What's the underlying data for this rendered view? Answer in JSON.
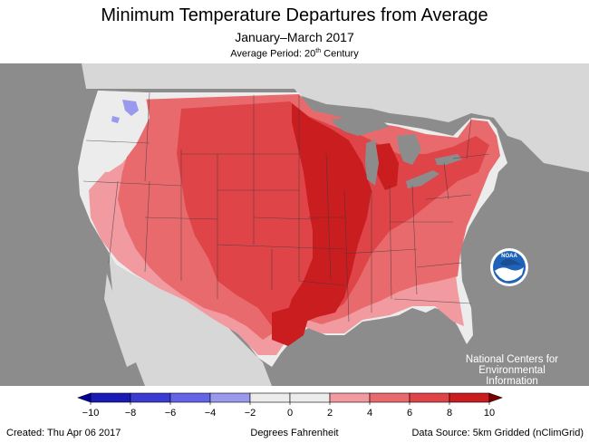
{
  "header": {
    "title": "Minimum Temperature Departures from Average",
    "subtitle": "January–March 2017",
    "period_prefix": "Average Period: 20",
    "period_sup": "th",
    "period_suffix": " Century"
  },
  "legend": {
    "ticks": [
      "−10",
      "−8",
      "−6",
      "−4",
      "−2",
      "0",
      "2",
      "4",
      "6",
      "8",
      "10"
    ],
    "bins": [
      {
        "from": -10,
        "to": -8,
        "color": "#1a1ab4"
      },
      {
        "from": -8,
        "to": -6,
        "color": "#3b3bd2"
      },
      {
        "from": -6,
        "to": -4,
        "color": "#6464e6"
      },
      {
        "from": -4,
        "to": -2,
        "color": "#9999ee"
      },
      {
        "from": -2,
        "to": 0,
        "color": "#ececec"
      },
      {
        "from": 0,
        "to": 2,
        "color": "#ececec"
      },
      {
        "from": 2,
        "to": 4,
        "color": "#f19aa0"
      },
      {
        "from": 4,
        "to": 6,
        "color": "#e96a6d"
      },
      {
        "from": 6,
        "to": 8,
        "color": "#de4448"
      },
      {
        "from": 8,
        "to": 10,
        "color": "#c91d20"
      }
    ],
    "low_color": "#0000a0",
    "high_color": "#7d0000",
    "unit": "Degrees Fahrenheit"
  },
  "footer": {
    "created": "Created: Thu Apr 06 2017",
    "source": "Data Source: 5km Gridded (nClimGrid)"
  },
  "organization": {
    "logo_text": "NOAA",
    "name_lines": [
      "National Centers for",
      "Environmental",
      "Information"
    ]
  },
  "map_colors": {
    "ocean": "#8c8c8c",
    "land_outside": "#d7d7d7",
    "lakes": "#8c8c8c",
    "near_normal": "#ececec",
    "plus_2_4": "#f19aa0",
    "plus_4_6": "#e96a6d",
    "plus_6_8": "#de4448",
    "plus_8_10": "#c91d20",
    "minus_2_4": "#9999ee"
  }
}
